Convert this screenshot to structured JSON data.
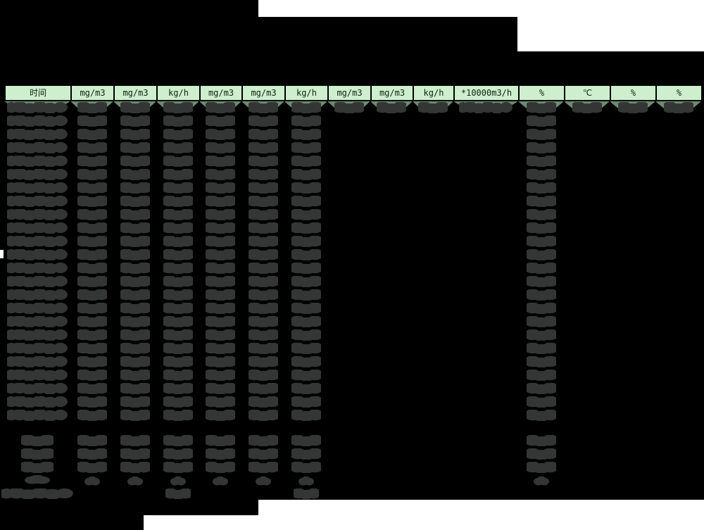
{
  "header": {
    "columns": [
      {
        "label": "时间"
      },
      {
        "label": "mg/m3"
      },
      {
        "label": "mg/m3"
      },
      {
        "label": "kg/h"
      },
      {
        "label": "mg/m3"
      },
      {
        "label": "mg/m3"
      },
      {
        "label": "kg/h"
      },
      {
        "label": "mg/m3"
      },
      {
        "label": "mg/m3"
      },
      {
        "label": "kg/h"
      },
      {
        "label": "*10000m3/h"
      },
      {
        "label": "%"
      },
      {
        "label": "℃"
      },
      {
        "label": "%"
      },
      {
        "label": "%"
      }
    ]
  },
  "redaction": {
    "main_row_count": 24,
    "summary_row_count": 4,
    "full_column_indices": [
      0,
      1,
      2,
      3,
      4,
      5,
      6,
      11
    ],
    "first_row_only_column_indices": [
      7,
      8,
      9,
      10,
      12,
      13,
      14
    ],
    "footer_blob_column_indices": [
      0,
      3,
      6
    ]
  },
  "colors": {
    "background": "#000000",
    "page_white": "#ffffff",
    "header_bg": "#cdefcd",
    "highlight_green": "#6c8c70",
    "blob_gray": "#343636",
    "header_text": "#102010"
  }
}
